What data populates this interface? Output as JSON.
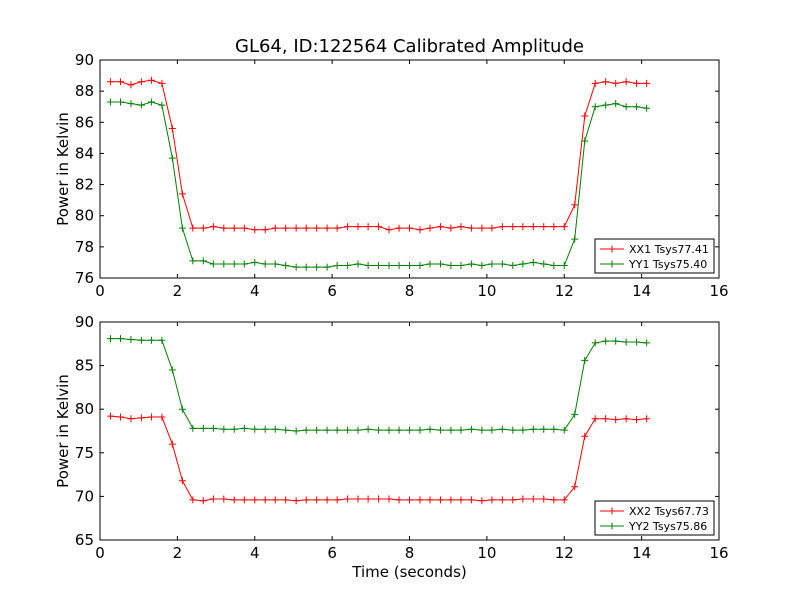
{
  "chart_data": [
    {
      "type": "line",
      "title": "GL64, ID:122564 Calibrated Amplitude",
      "xlabel": "",
      "ylabel": "Power in Kelvin",
      "xlim": [
        0,
        16
      ],
      "ylim": [
        76,
        90
      ],
      "xticks": [
        "0",
        "2",
        "4",
        "6",
        "8",
        "10",
        "12",
        "14",
        "16"
      ],
      "yticks": [
        "76",
        "78",
        "80",
        "82",
        "84",
        "86",
        "88",
        "90"
      ],
      "legend_position": "lower-right",
      "x": [
        0.27,
        0.53,
        0.8,
        1.07,
        1.33,
        1.6,
        1.87,
        2.13,
        2.4,
        2.67,
        2.93,
        3.2,
        3.47,
        3.73,
        4.0,
        4.27,
        4.53,
        4.8,
        5.07,
        5.33,
        5.6,
        5.87,
        6.13,
        6.4,
        6.67,
        6.93,
        7.2,
        7.47,
        7.73,
        8.0,
        8.27,
        8.53,
        8.8,
        9.07,
        9.33,
        9.6,
        9.87,
        10.13,
        10.4,
        10.67,
        10.93,
        11.2,
        11.47,
        11.73,
        12.0,
        12.27,
        12.53,
        12.8,
        13.07,
        13.33,
        13.6,
        13.87,
        14.13
      ],
      "series": [
        {
          "name": "XX1 Tsys77.41",
          "color": "#ff0000",
          "values": [
            88.6,
            88.6,
            88.4,
            88.6,
            88.7,
            88.5,
            85.6,
            81.4,
            79.2,
            79.2,
            79.3,
            79.2,
            79.2,
            79.2,
            79.1,
            79.1,
            79.2,
            79.2,
            79.2,
            79.2,
            79.2,
            79.2,
            79.2,
            79.3,
            79.3,
            79.3,
            79.3,
            79.1,
            79.2,
            79.2,
            79.1,
            79.2,
            79.3,
            79.2,
            79.3,
            79.2,
            79.2,
            79.2,
            79.3,
            79.3,
            79.3,
            79.3,
            79.3,
            79.3,
            79.3,
            80.7,
            86.4,
            88.5,
            88.6,
            88.5,
            88.6,
            88.5,
            88.5
          ]
        },
        {
          "name": "YY1 Tsys75.40",
          "color": "#008000",
          "values": [
            87.3,
            87.3,
            87.2,
            87.1,
            87.3,
            87.1,
            83.7,
            79.2,
            77.1,
            77.1,
            76.9,
            76.9,
            76.9,
            76.9,
            77.0,
            76.9,
            76.9,
            76.8,
            76.7,
            76.7,
            76.7,
            76.7,
            76.8,
            76.8,
            76.9,
            76.8,
            76.8,
            76.8,
            76.8,
            76.8,
            76.8,
            76.9,
            76.9,
            76.8,
            76.8,
            76.9,
            76.8,
            76.9,
            76.9,
            76.8,
            76.9,
            77.0,
            76.9,
            76.8,
            76.8,
            78.5,
            84.8,
            87.0,
            87.1,
            87.2,
            87.0,
            87.0,
            86.9
          ]
        }
      ]
    },
    {
      "type": "line",
      "title": "",
      "xlabel": "Time (seconds)",
      "ylabel": "Power in Kelvin",
      "xlim": [
        0,
        16
      ],
      "ylim": [
        65,
        90
      ],
      "xticks": [
        "0",
        "2",
        "4",
        "6",
        "8",
        "10",
        "12",
        "14",
        "16"
      ],
      "yticks": [
        "65",
        "70",
        "75",
        "80",
        "85",
        "90"
      ],
      "legend_position": "lower-right",
      "x": [
        0.27,
        0.53,
        0.8,
        1.07,
        1.33,
        1.6,
        1.87,
        2.13,
        2.4,
        2.67,
        2.93,
        3.2,
        3.47,
        3.73,
        4.0,
        4.27,
        4.53,
        4.8,
        5.07,
        5.33,
        5.6,
        5.87,
        6.13,
        6.4,
        6.67,
        6.93,
        7.2,
        7.47,
        7.73,
        8.0,
        8.27,
        8.53,
        8.8,
        9.07,
        9.33,
        9.6,
        9.87,
        10.13,
        10.4,
        10.67,
        10.93,
        11.2,
        11.47,
        11.73,
        12.0,
        12.27,
        12.53,
        12.8,
        13.07,
        13.33,
        13.6,
        13.87,
        14.13
      ],
      "series": [
        {
          "name": "XX2 Tsys67.73",
          "color": "#ff0000",
          "values": [
            79.2,
            79.1,
            78.9,
            79.0,
            79.1,
            79.1,
            76.0,
            71.8,
            69.6,
            69.5,
            69.7,
            69.7,
            69.6,
            69.6,
            69.6,
            69.6,
            69.6,
            69.6,
            69.5,
            69.6,
            69.6,
            69.6,
            69.6,
            69.7,
            69.7,
            69.7,
            69.7,
            69.7,
            69.6,
            69.6,
            69.6,
            69.6,
            69.6,
            69.6,
            69.6,
            69.6,
            69.5,
            69.6,
            69.6,
            69.6,
            69.7,
            69.7,
            69.7,
            69.6,
            69.6,
            71.1,
            76.9,
            78.9,
            78.9,
            78.8,
            78.9,
            78.8,
            78.9
          ]
        },
        {
          "name": "YY2 Tsys75.86",
          "color": "#008000",
          "values": [
            88.1,
            88.1,
            88.0,
            87.9,
            87.9,
            87.9,
            84.5,
            80.0,
            77.8,
            77.8,
            77.8,
            77.7,
            77.7,
            77.8,
            77.7,
            77.7,
            77.7,
            77.6,
            77.5,
            77.6,
            77.6,
            77.6,
            77.6,
            77.6,
            77.6,
            77.7,
            77.6,
            77.6,
            77.6,
            77.6,
            77.6,
            77.7,
            77.6,
            77.6,
            77.6,
            77.7,
            77.6,
            77.6,
            77.7,
            77.6,
            77.6,
            77.7,
            77.7,
            77.7,
            77.6,
            79.4,
            85.6,
            87.6,
            87.8,
            87.8,
            87.7,
            87.7,
            87.6
          ]
        }
      ]
    }
  ]
}
